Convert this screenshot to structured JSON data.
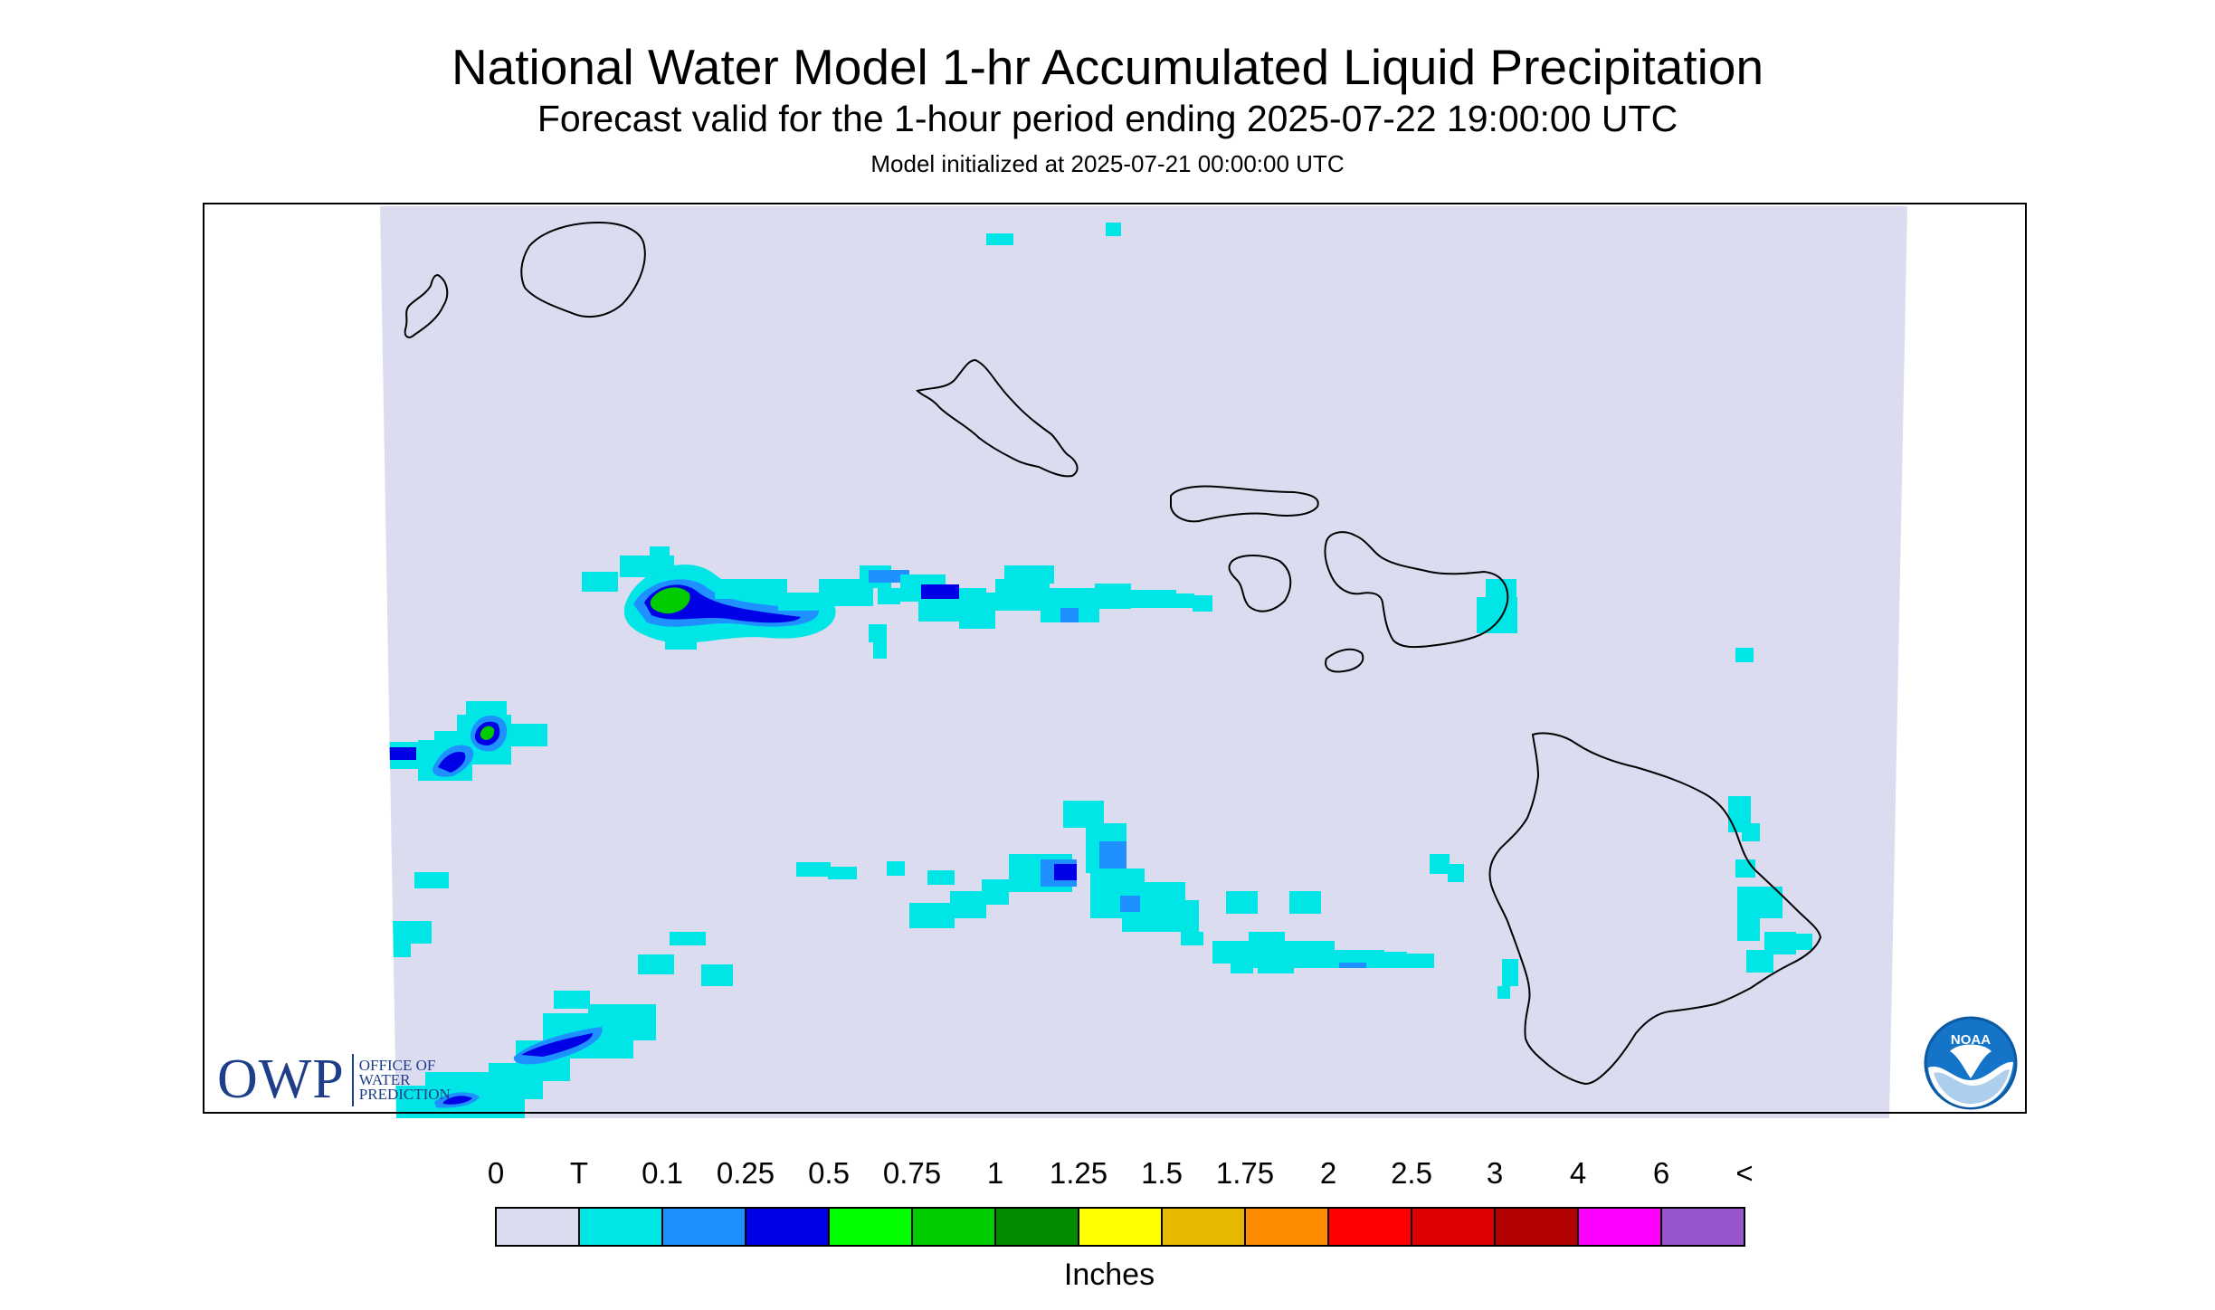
{
  "title": "National Water Model 1-hr Accumulated Liquid Precipitation",
  "subtitle": "Forecast valid for the 1-hour period ending 2025-07-22 19:00:00 UTC",
  "init_line": "Model initialized at 2025-07-21 00:00:00 UTC",
  "legend": {
    "labels": [
      "0",
      "T",
      "0.1",
      "0.25",
      "0.5",
      "0.75",
      "1",
      "1.25",
      "1.5",
      "1.75",
      "2",
      "2.5",
      "3",
      "4",
      "6",
      "<"
    ],
    "colors": [
      "#dcdcf0",
      "#00e5e5",
      "#1e90ff",
      "#0000e6",
      "#00ff00",
      "#00cc00",
      "#008b00",
      "#ffff00",
      "#e6b800",
      "#ff8c00",
      "#ff0000",
      "#dd0000",
      "#b30000",
      "#ff00ff",
      "#9955cc"
    ],
    "units": "Inches"
  },
  "map": {
    "background": "#dcdcf0",
    "coast_color": "#000000",
    "islands": [
      "Niihau",
      "Kauai",
      "Oahu",
      "Molokai",
      "Lanai",
      "Maui",
      "Kahoolawe",
      "Hawaii"
    ]
  },
  "logos": {
    "owp_mark": "OWP",
    "owp_text": [
      "OFFICE OF",
      "WATER",
      "PREDICTION"
    ],
    "noaa_text": "NOAA"
  }
}
